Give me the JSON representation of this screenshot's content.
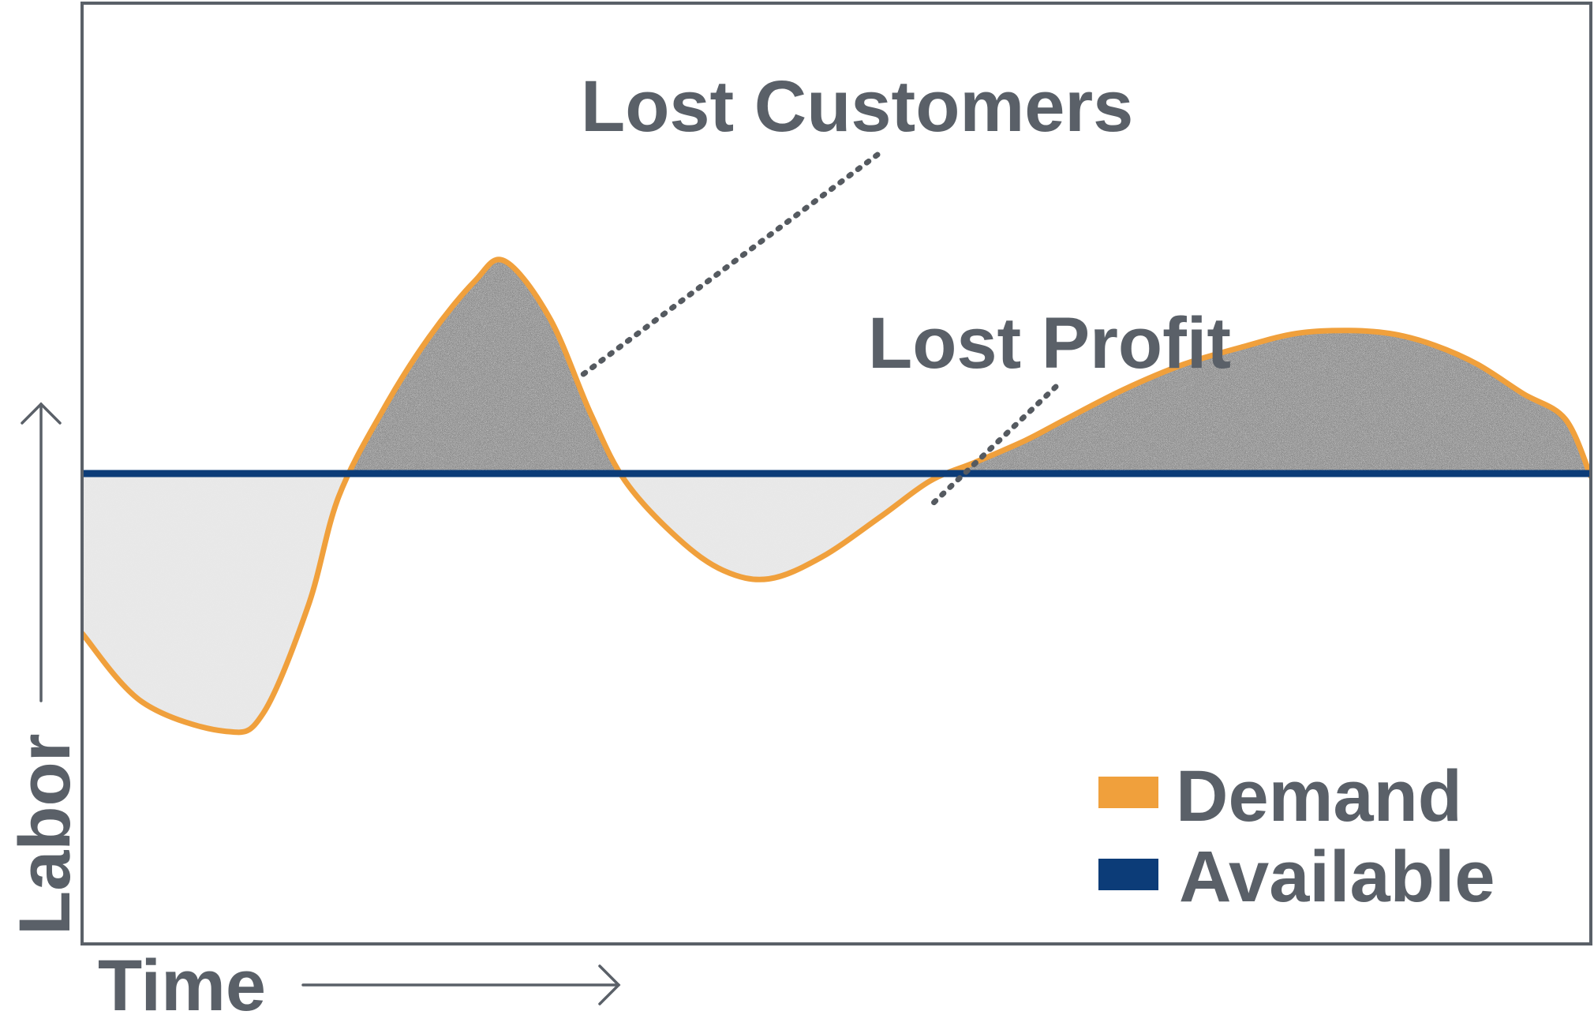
{
  "chart_data": {
    "type": "line",
    "xlabel": "Time",
    "ylabel": "Labor",
    "xlim": [
      0,
      100
    ],
    "ylim": [
      0,
      100
    ],
    "grid": false,
    "legend_position": "bottom-right",
    "series": [
      {
        "name": "Demand",
        "color": "#f0a03c",
        "x": [
          0,
          4,
          9.5,
          12,
          15,
          17,
          20,
          23,
          26,
          28,
          31,
          33.7,
          36,
          39.5,
          42.5,
          45.5,
          49,
          53,
          56.2,
          59.2,
          62.5,
          65,
          69,
          73,
          77,
          80.5,
          84,
          87,
          89.7,
          92.5,
          95.5,
          98.3,
          100
        ],
        "y": [
          33,
          25.7,
          22.6,
          24.5,
          36,
          47.5,
          56.9,
          64.5,
          70.4,
          72.6,
          66.5,
          56.4,
          49.2,
          43.1,
          39.7,
          38.8,
          41.1,
          45.5,
          49.2,
          51.2,
          53.5,
          55.6,
          58.9,
          61.6,
          63.5,
          64.9,
          65.2,
          64.8,
          63.6,
          61.6,
          58.5,
          55.8,
          49.7
        ]
      },
      {
        "name": "Available",
        "color": "#0c3c78",
        "x": [
          0,
          100
        ],
        "y": [
          50,
          50
        ]
      }
    ],
    "annotations": [
      {
        "text": "Lost Customers",
        "x": 31.5,
        "y": 58
      },
      {
        "text": "Lost Profit",
        "x": 56.5,
        "y": 46.5
      }
    ],
    "legend": [
      {
        "label": "Demand",
        "color": "#f0a03c"
      },
      {
        "label": "Available",
        "color": "#0c3c78"
      }
    ],
    "axis_color": "#5a6068",
    "text_color": "#5a6068"
  }
}
